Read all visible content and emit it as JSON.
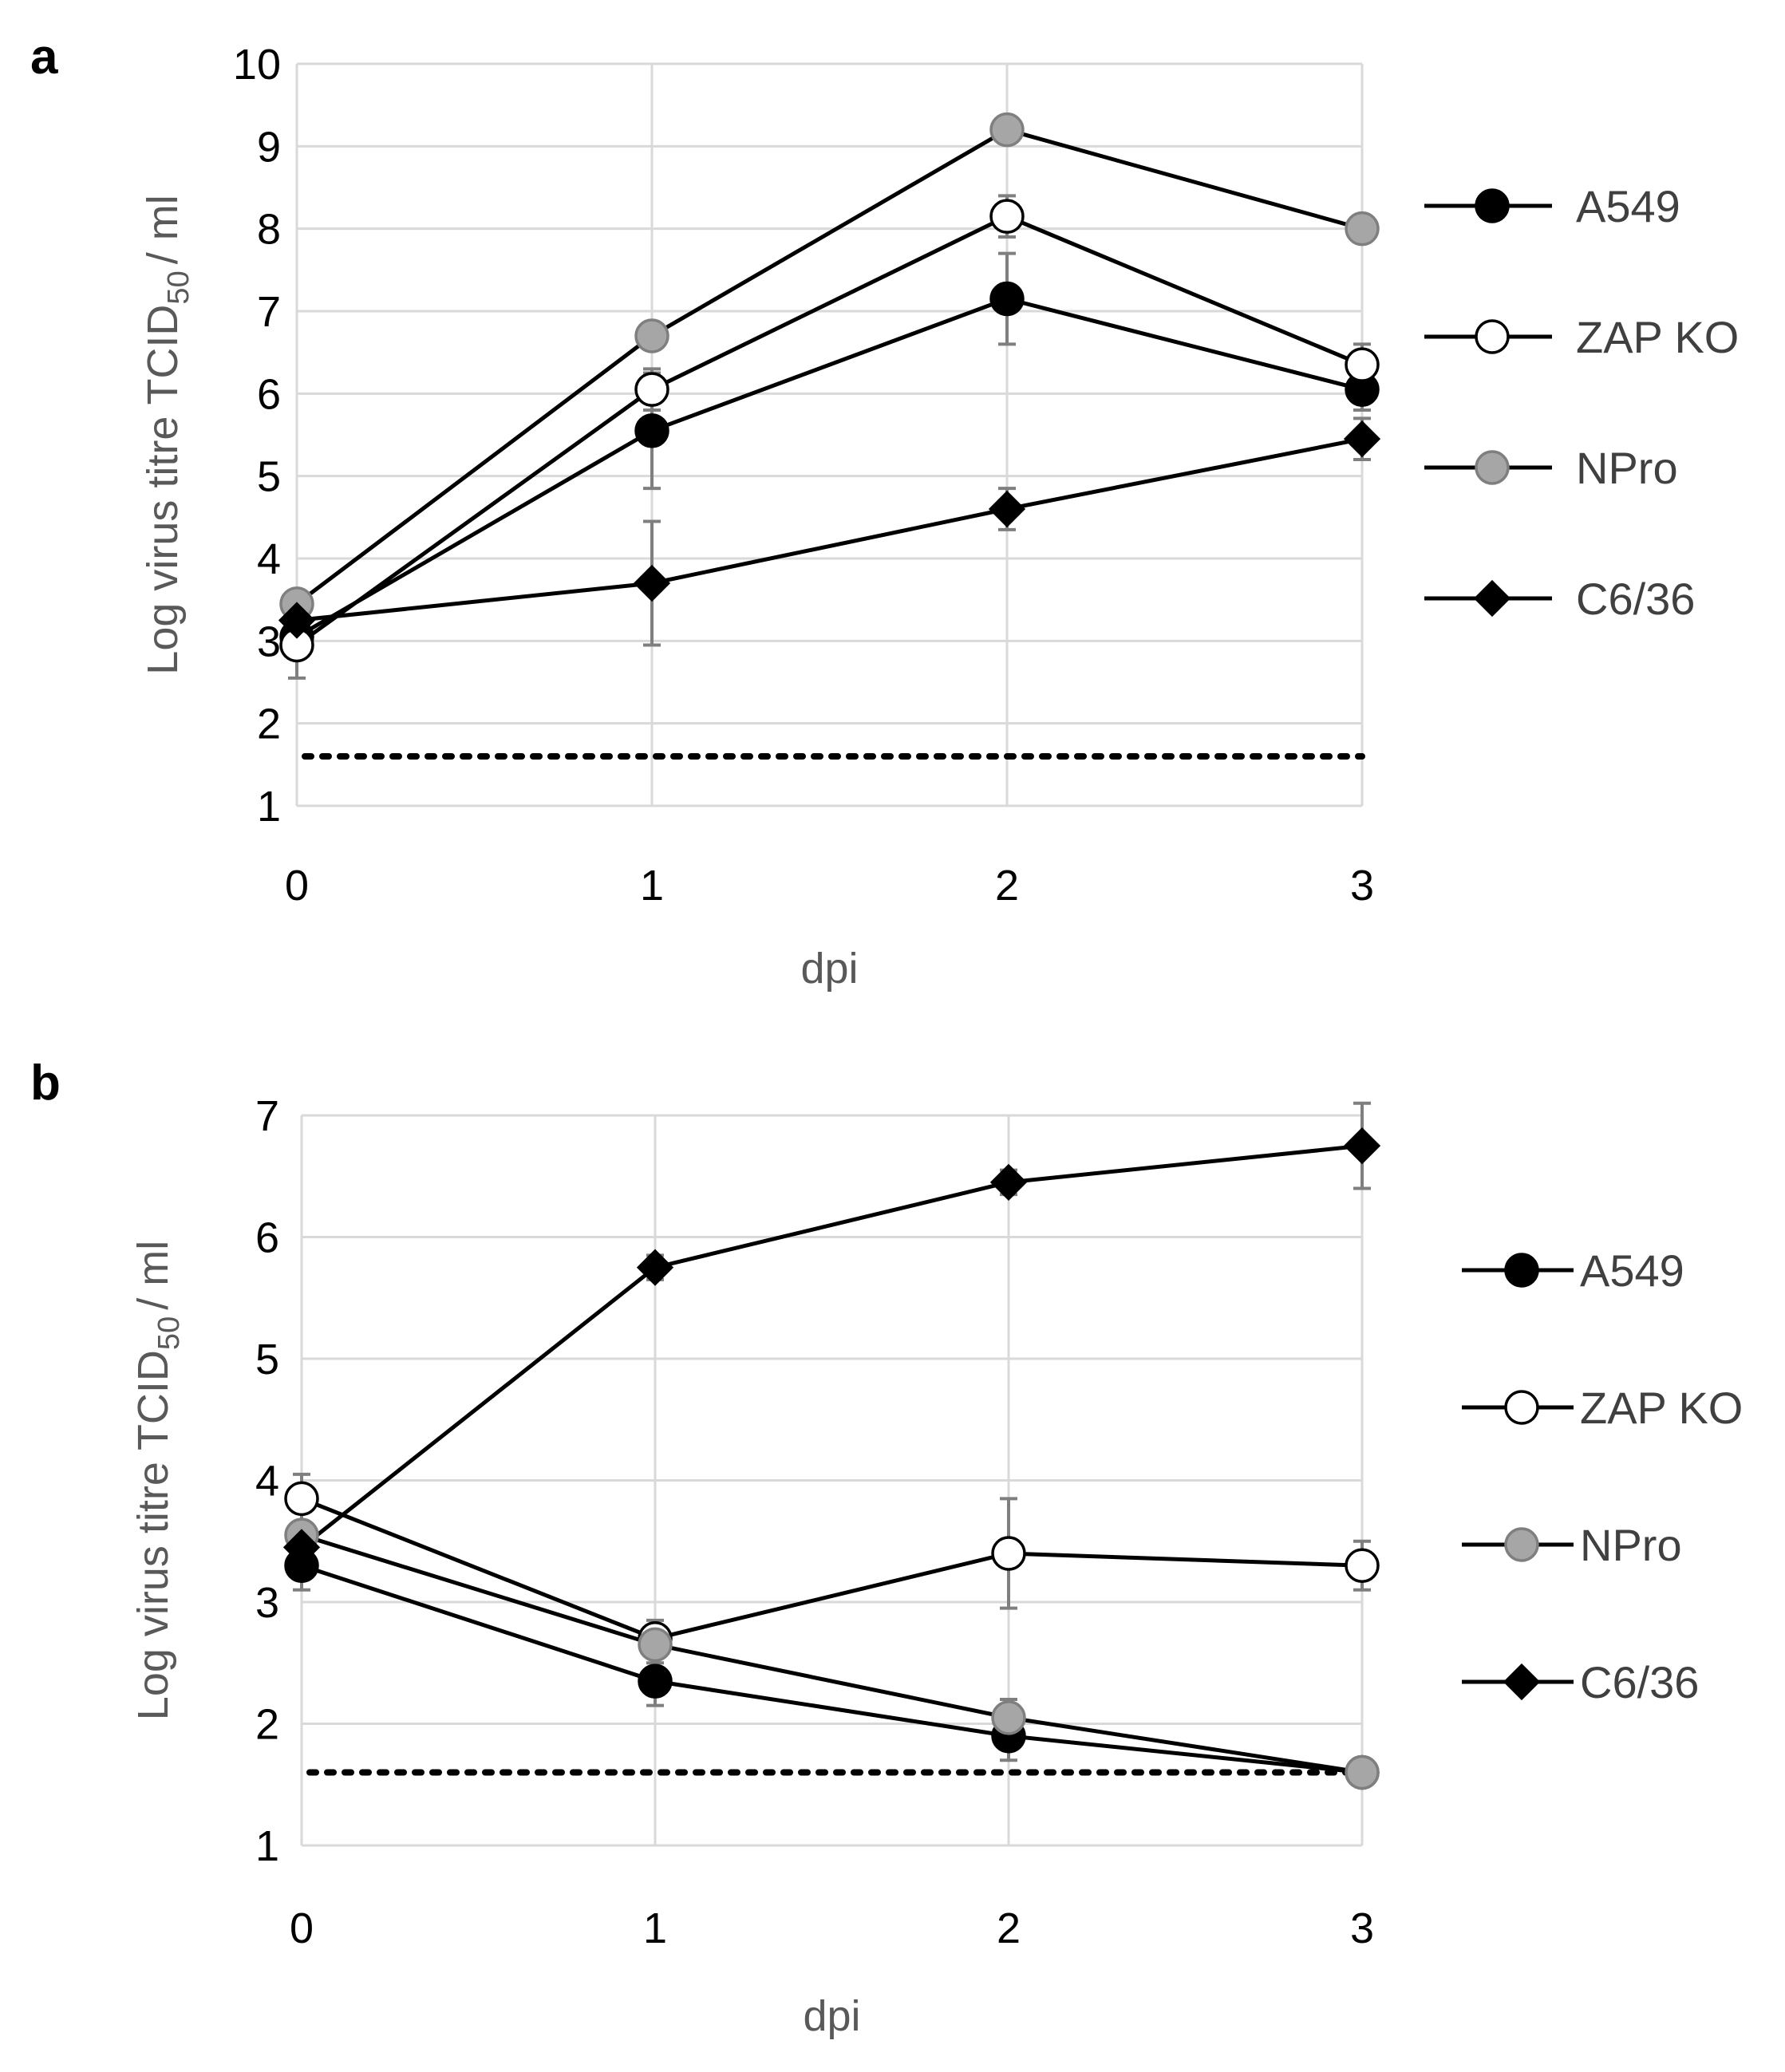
{
  "chart_data": [
    {
      "panel_label": "a",
      "type": "line",
      "x": [
        0,
        1,
        2,
        3
      ],
      "xlabel": "dpi",
      "ylabel": "Log virus titre TCID",
      "ylabel_sub": "50",
      "ylabel_suffix": "/ ml",
      "xlim": [
        0,
        3
      ],
      "ylim": [
        1,
        10
      ],
      "yticks": [
        1,
        2,
        3,
        4,
        5,
        6,
        7,
        8,
        9,
        10
      ],
      "xticks": [
        0,
        1,
        2,
        3
      ],
      "grid": true,
      "legend_position": "right",
      "detection_limit": 1.6,
      "series": [
        {
          "name": "A549",
          "marker": "circle",
          "fill": "#000000",
          "values": [
            3.05,
            5.55,
            7.15,
            6.05
          ],
          "errors": [
            0.25,
            0.7,
            0.55,
            0.25
          ]
        },
        {
          "name": "ZAP KO",
          "marker": "circle",
          "fill": "#ffffff",
          "values": [
            2.95,
            6.05,
            8.15,
            6.35
          ],
          "errors": [
            0.4,
            0.25,
            0.25,
            0.25
          ]
        },
        {
          "name": "NPro",
          "marker": "circle",
          "fill": "#a6a6a6",
          "values": [
            3.45,
            6.7,
            9.2,
            8.0
          ],
          "errors": [
            0.1,
            0.1,
            0.1,
            0.1
          ]
        },
        {
          "name": "C6/36",
          "marker": "diamond",
          "fill": "#000000",
          "values": [
            3.25,
            3.7,
            4.6,
            5.45
          ],
          "errors": [
            0.1,
            0.75,
            0.25,
            0.25
          ]
        }
      ]
    },
    {
      "panel_label": "b",
      "type": "line",
      "x": [
        0,
        1,
        2,
        3
      ],
      "xlabel": "dpi",
      "ylabel": "Log virus titre TCID",
      "ylabel_sub": "50",
      "ylabel_suffix": "/ ml",
      "xlim": [
        0,
        3
      ],
      "ylim": [
        1,
        7
      ],
      "yticks": [
        1,
        2,
        3,
        4,
        5,
        6,
        7
      ],
      "xticks": [
        0,
        1,
        2,
        3
      ],
      "grid": true,
      "legend_position": "right",
      "detection_limit": 1.6,
      "series": [
        {
          "name": "A549",
          "marker": "circle",
          "fill": "#000000",
          "values": [
            3.3,
            2.35,
            1.9,
            1.6
          ],
          "errors": [
            0.2,
            0.2,
            0.2,
            0.05
          ]
        },
        {
          "name": "ZAP KO",
          "marker": "circle",
          "fill": "#ffffff",
          "values": [
            3.85,
            2.7,
            3.4,
            3.3
          ],
          "errors": [
            0.2,
            0.15,
            0.45,
            0.2
          ]
        },
        {
          "name": "NPro",
          "marker": "circle",
          "fill": "#a6a6a6",
          "values": [
            3.55,
            2.65,
            2.05,
            1.6
          ],
          "errors": [
            0.2,
            0.15,
            0.15,
            0.05
          ]
        },
        {
          "name": "C6/36",
          "marker": "diamond",
          "fill": "#000000",
          "values": [
            3.45,
            5.75,
            6.45,
            6.75
          ],
          "errors": [
            0.1,
            0.1,
            0.1,
            0.35
          ]
        }
      ]
    }
  ]
}
